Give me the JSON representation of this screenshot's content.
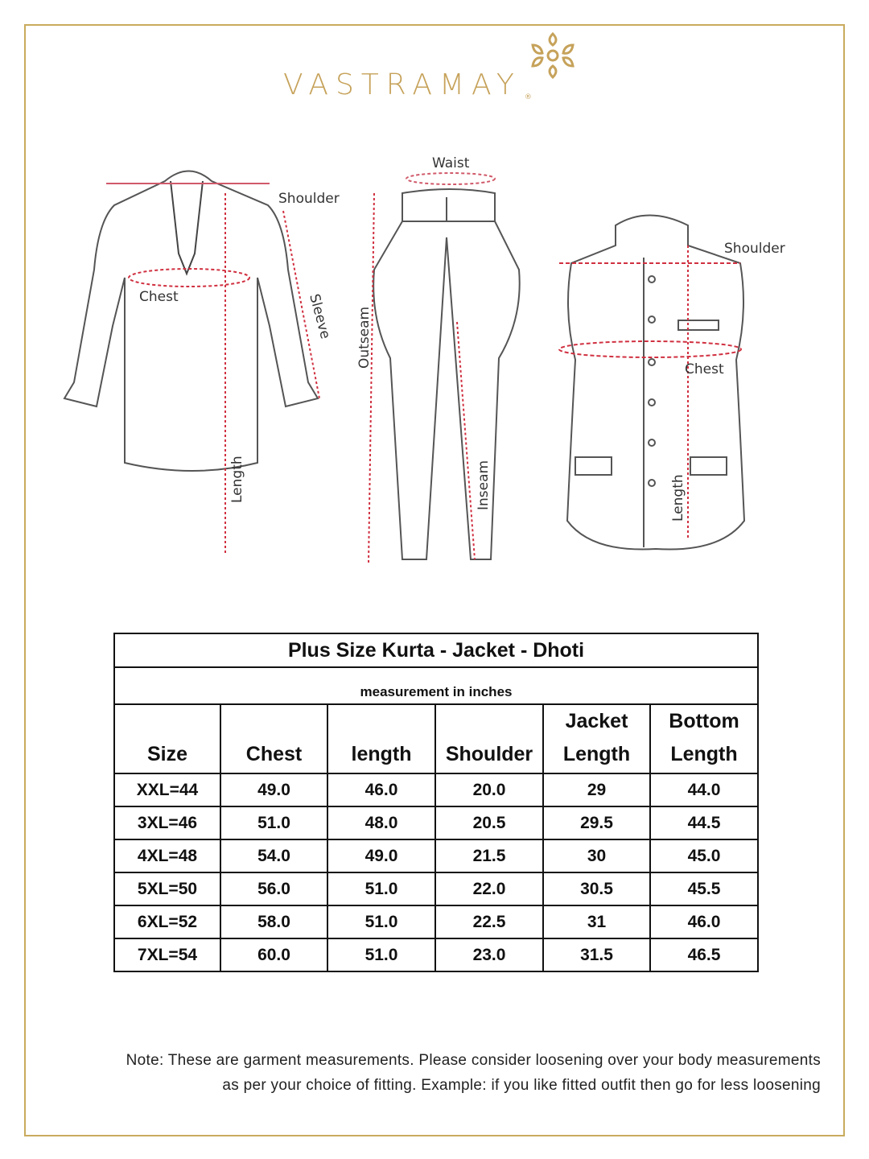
{
  "brand": {
    "name": "VASTRAMAY",
    "registered": "®",
    "color": "#c6a25a"
  },
  "diagram_labels": {
    "kurta": {
      "shoulder": "Shoulder",
      "chest": "Chest",
      "sleeve": "Sleeve",
      "length": "Length"
    },
    "dhoti": {
      "waist": "Waist",
      "outseam": "Outseam",
      "inseam": "Inseam"
    },
    "jacket": {
      "shoulder": "Shoulder",
      "chest": "Chest",
      "length": "Length"
    }
  },
  "table": {
    "title": "Plus Size Kurta - Jacket - Dhoti",
    "subtitle": "measurement in inches",
    "headers": [
      [
        "",
        "Size"
      ],
      [
        "",
        "Chest"
      ],
      [
        "",
        "length"
      ],
      [
        "",
        "Shoulder"
      ],
      [
        "Jacket",
        "Length"
      ],
      [
        "Bottom",
        "Length"
      ]
    ],
    "rows": [
      [
        "XXL=44",
        "49.0",
        "46.0",
        "20.0",
        "29",
        "44.0"
      ],
      [
        "3XL=46",
        "51.0",
        "48.0",
        "20.5",
        "29.5",
        "44.5"
      ],
      [
        "4XL=48",
        "54.0",
        "49.0",
        "21.5",
        "30",
        "45.0"
      ],
      [
        "5XL=50",
        "56.0",
        "51.0",
        "22.0",
        "30.5",
        "45.5"
      ],
      [
        "6XL=52",
        "58.0",
        "51.0",
        "22.5",
        "31",
        "46.0"
      ],
      [
        "7XL=54",
        "60.0",
        "51.0",
        "23.0",
        "31.5",
        "46.5"
      ]
    ]
  },
  "note": {
    "line1": "Note: These are garment measurements. Please consider loosening over your body measurements",
    "line2": "as per your choice of fitting. Example: if you like fitted outfit then go for less loosening"
  }
}
